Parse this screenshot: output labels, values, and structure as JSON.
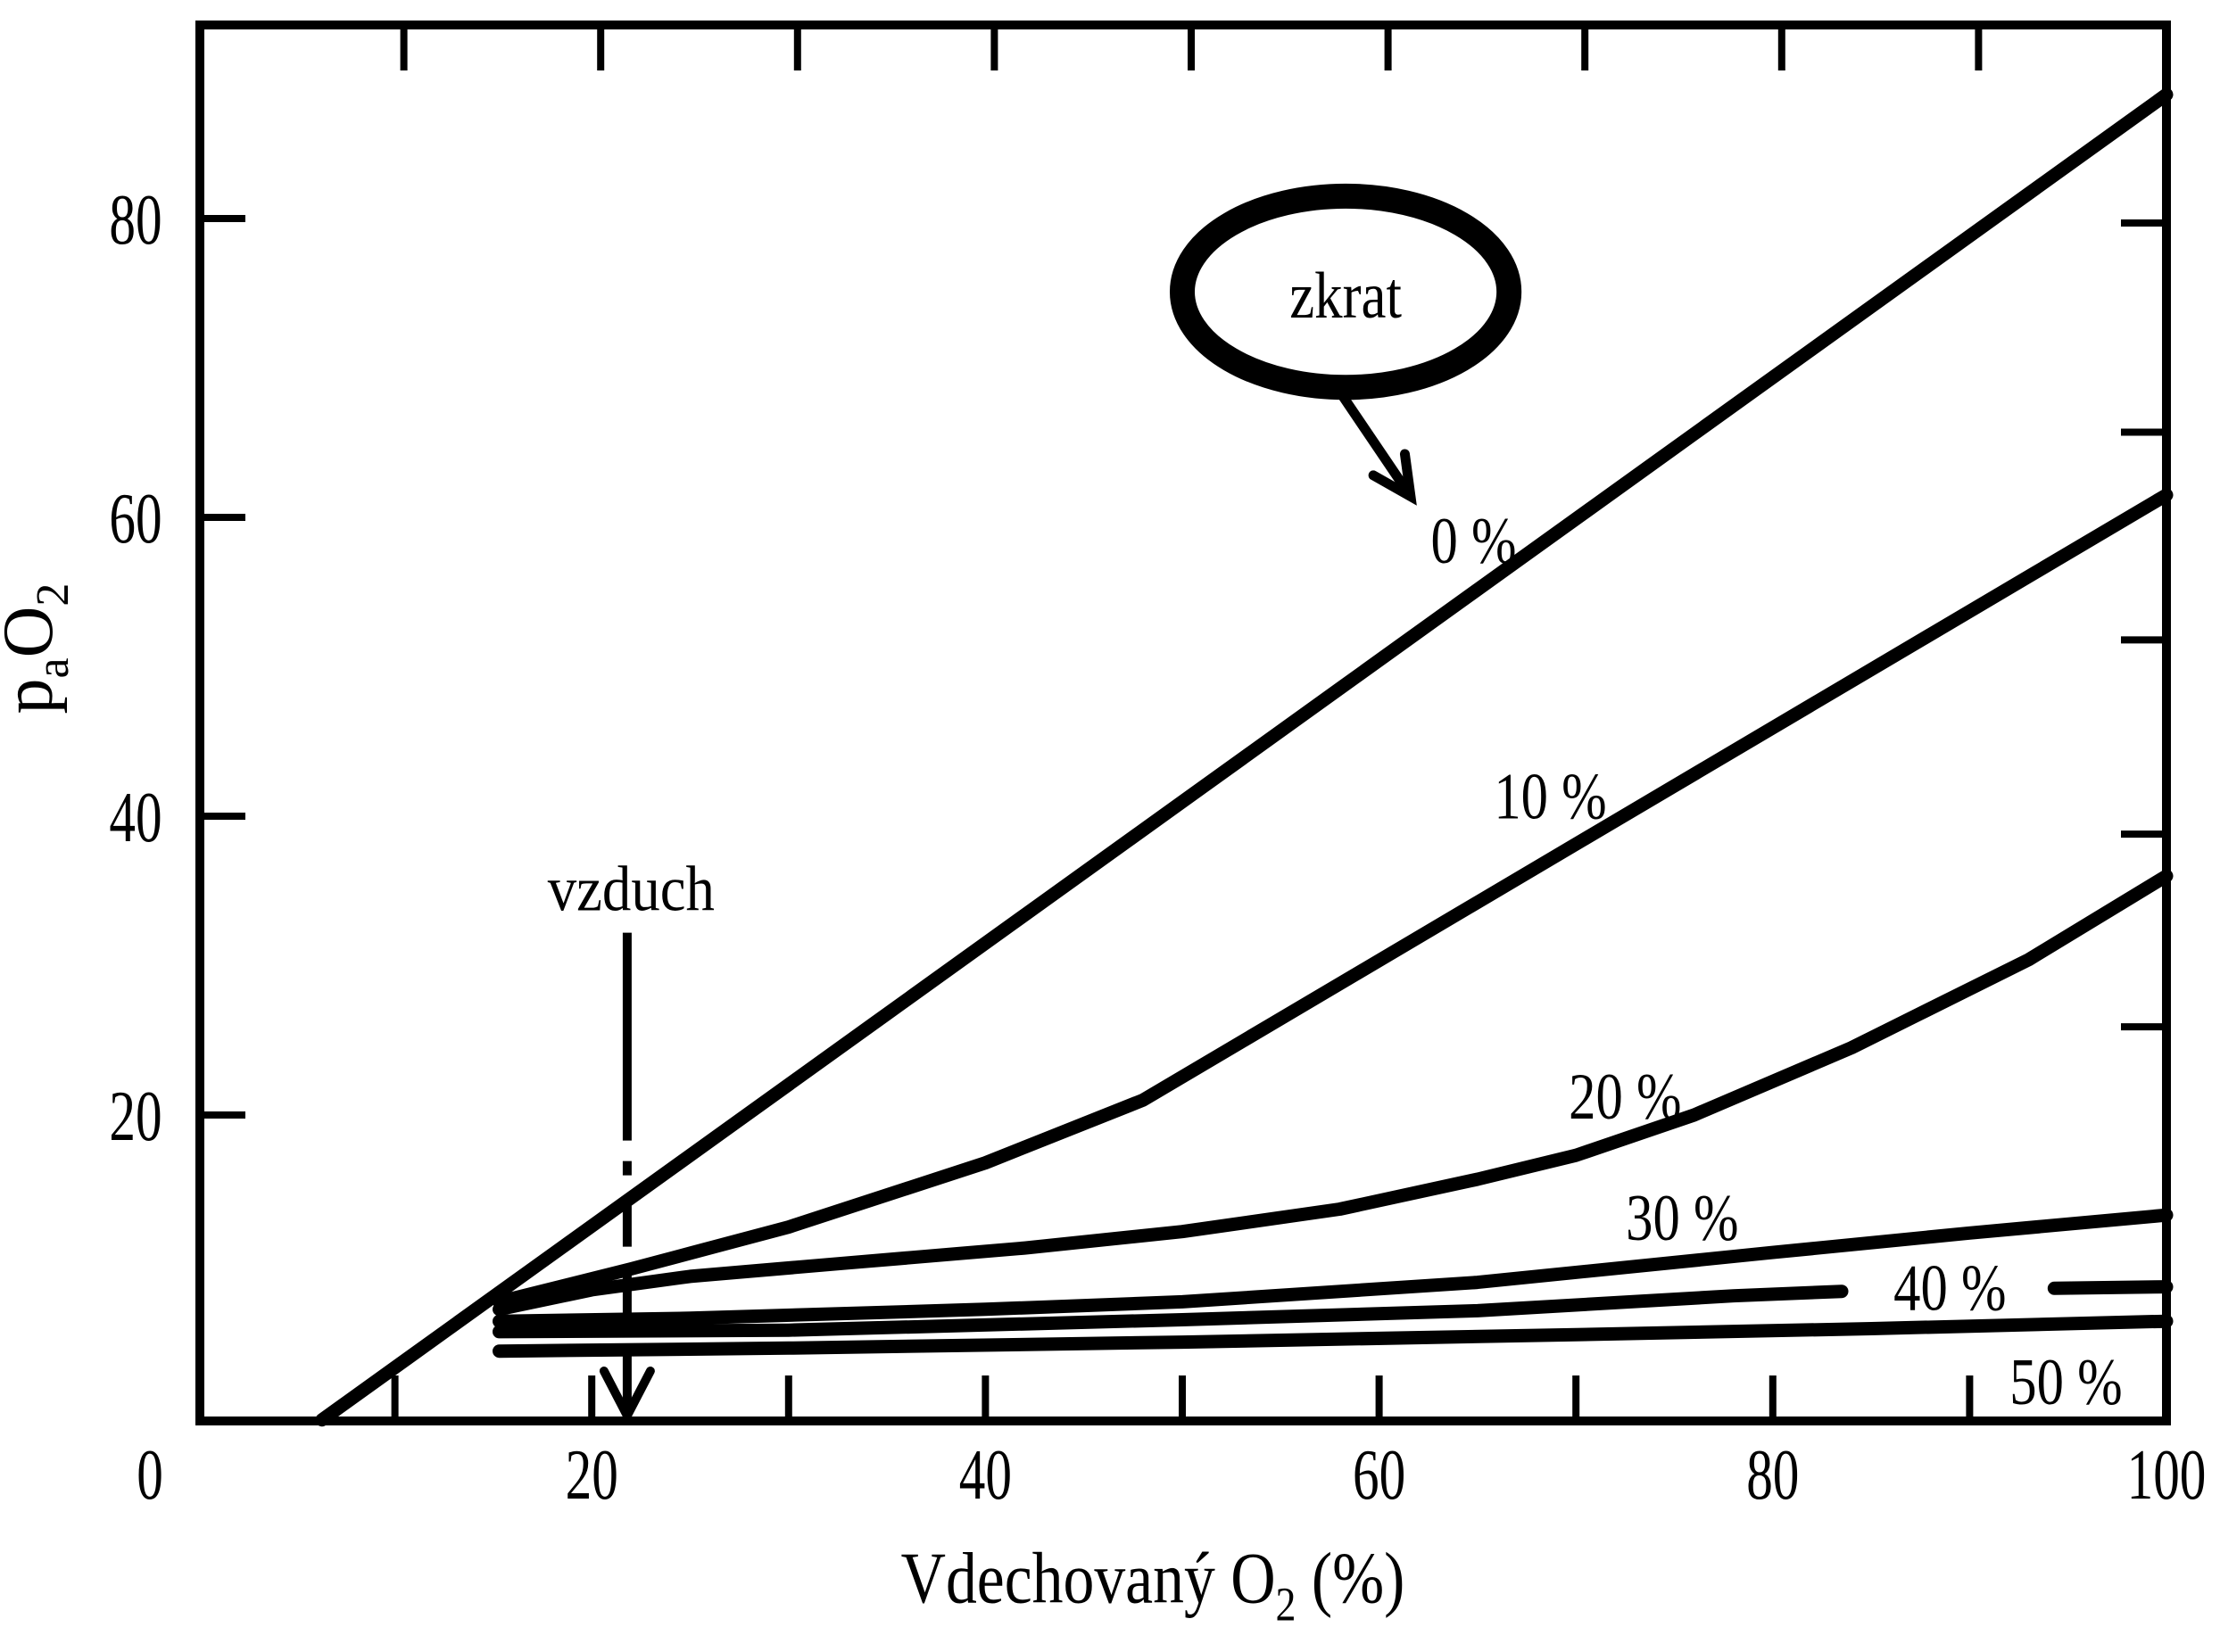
{
  "figure": {
    "background": "#ffffff",
    "ink_color": "#000000"
  },
  "chart_data": {
    "type": "line",
    "title": "",
    "xlabel": {
      "text": "Vdechovaný O2 (%)",
      "pre": "Vdechovaný O",
      "sub": "2",
      "post": " (%)"
    },
    "ylabel": {
      "text": "paO2",
      "pre": "p",
      "sub1": "a",
      "mid": "O",
      "sub2": "2"
    },
    "xlim": [
      0,
      100
    ],
    "ylim": [
      0,
      93
    ],
    "x_tick_labels": [
      "0",
      "20",
      "40",
      "60",
      "80",
      "100"
    ],
    "x_tick_label_values": [
      0,
      20,
      40,
      60,
      80,
      100
    ],
    "x_minor_ticks": [
      10,
      20,
      30,
      40,
      50,
      60,
      70,
      80,
      90
    ],
    "y_tick_labels": [
      "20",
      "40",
      "60",
      "80"
    ],
    "y_tick_values": [
      20,
      40,
      60,
      80
    ],
    "right_edge_ticks": [
      79.7,
      65.7,
      51.8,
      38.8,
      25.9
    ],
    "grid": false,
    "series": [
      {
        "name": "0 %",
        "shunt_pct": 0,
        "points": [
          [
            6.3,
            -0.4
          ],
          [
            100,
            88.3
          ]
        ],
        "label_at": [
          64.8,
          58.5
        ]
      },
      {
        "name": "10 %",
        "shunt_pct": 10,
        "points": [
          [
            15.3,
            7.5
          ],
          [
            22,
            9.7
          ],
          [
            30,
            12.5
          ],
          [
            40,
            16.8
          ],
          [
            48,
            21
          ],
          [
            100,
            61.5
          ]
        ],
        "label_at": [
          68.7,
          41.4
        ]
      },
      {
        "name": "20 %",
        "shunt_pct": 20,
        "points": [
          [
            15.3,
            7.0
          ],
          [
            20,
            8.3
          ],
          [
            25,
            9.2
          ],
          [
            33,
            10.1
          ],
          [
            42,
            11.1
          ],
          [
            50,
            12.2
          ],
          [
            58,
            13.7
          ],
          [
            65,
            15.7
          ],
          [
            70,
            17.3
          ],
          [
            76,
            20
          ],
          [
            84,
            24.5
          ],
          [
            93,
            30.4
          ],
          [
            100,
            36
          ]
        ],
        "label_at": [
          72.5,
          21.3
        ]
      },
      {
        "name": "30 %",
        "shunt_pct": 30,
        "points": [
          [
            15.3,
            6.2
          ],
          [
            25,
            6.4
          ],
          [
            40,
            7.0
          ],
          [
            50,
            7.5
          ],
          [
            65,
            8.8
          ],
          [
            80,
            10.8
          ],
          [
            90,
            12.1
          ],
          [
            100,
            13.3
          ]
        ],
        "label_at": [
          75.4,
          13.2
        ]
      },
      {
        "name": "40 %",
        "shunt_pct": 40,
        "points": [
          [
            15.3,
            5.5
          ],
          [
            30,
            5.6
          ],
          [
            50,
            6.3
          ],
          [
            65,
            6.9
          ],
          [
            78,
            7.9
          ],
          [
            83.5,
            8.2
          ]
        ],
        "points2": [
          [
            94.3,
            8.4
          ],
          [
            100,
            8.5
          ]
        ],
        "label_at": [
          89.0,
          8.5
        ]
      },
      {
        "name": "50 %",
        "shunt_pct": 50,
        "points": [
          [
            15.3,
            4.2
          ],
          [
            30,
            4.4
          ],
          [
            50,
            4.8
          ],
          [
            70,
            5.3
          ],
          [
            85,
            5.7
          ],
          [
            100,
            6.2
          ]
        ],
        "label_at": [
          94.9,
          2.2
        ]
      }
    ],
    "annotations": {
      "zkrat": {
        "text": "zkrat",
        "ellipse_center": [
          58.3,
          75.1
        ],
        "ellipse_rx": 8.3,
        "ellipse_ry": 6.4,
        "arrow_from": [
          57.8,
          68.8
        ],
        "arrow_to": [
          61.6,
          61.4
        ]
      },
      "vzduch": {
        "text": "vzduch",
        "text_at": [
          22.0,
          35.2
        ],
        "line_x": 21.8,
        "line_y_top": 32.2,
        "line_y_bottom": 0
      }
    }
  }
}
